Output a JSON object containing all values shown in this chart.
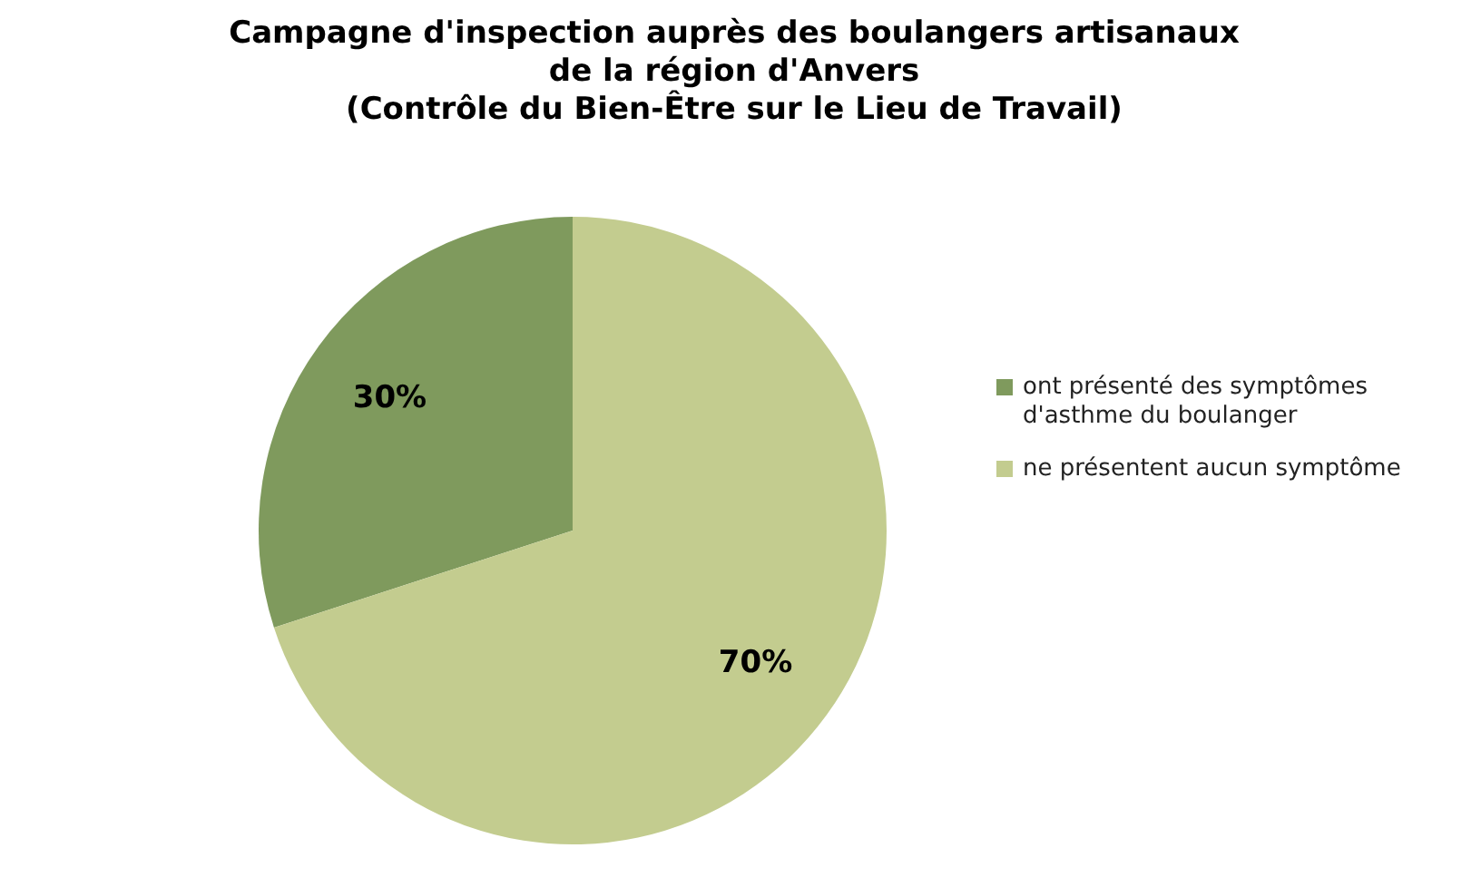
{
  "chart_data": {
    "type": "pie",
    "title": "Campagne d'inspection auprès des boulangers artisanaux\nde la région d'Anvers\n(Contrôle du Bien-Être sur le Lieu de Travail)",
    "categories": [
      "ont présenté des symptômes d'asthme du boulanger",
      "ne présentent aucun symptôme"
    ],
    "values": [
      30,
      70
    ],
    "colors": [
      "#7f9a5d",
      "#c3cc8f"
    ],
    "value_labels": [
      "30%",
      "70%"
    ],
    "legend": "right"
  }
}
